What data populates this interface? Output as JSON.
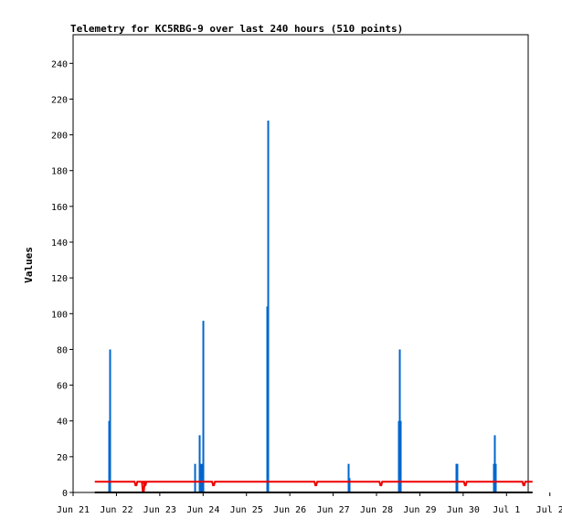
{
  "chart_data": {
    "type": "bar",
    "title": "Telemetry for KC5RBG-9 over last 240 hours (510 points)",
    "ylabel": "Values",
    "xlabel": "",
    "ylim": [
      0,
      256
    ],
    "xlim_days": [
      21,
      31.5
    ],
    "y_ticks": [
      0,
      20,
      40,
      60,
      80,
      100,
      120,
      140,
      160,
      180,
      200,
      220,
      240
    ],
    "x_ticks": [
      {
        "day": 21,
        "label": "Jun 21"
      },
      {
        "day": 22,
        "label": "Jun 22"
      },
      {
        "day": 23,
        "label": "Jun 23"
      },
      {
        "day": 24,
        "label": "Jun 24"
      },
      {
        "day": 25,
        "label": "Jun 25"
      },
      {
        "day": 26,
        "label": "Jun 26"
      },
      {
        "day": 27,
        "label": "Jun 27"
      },
      {
        "day": 28,
        "label": "Jun 28"
      },
      {
        "day": 29,
        "label": "Jun 29"
      },
      {
        "day": 30,
        "label": "Jun 30"
      },
      {
        "day": 31,
        "label": "Jul 1"
      },
      {
        "day": 32,
        "label": "Jul 2"
      }
    ],
    "grid": false,
    "series": [
      {
        "color": "#0066cc",
        "style": "spikes",
        "points": [
          {
            "x": 21.82,
            "y": 40
          },
          {
            "x": 21.84,
            "y": 80
          },
          {
            "x": 23.8,
            "y": 16
          },
          {
            "x": 23.92,
            "y": 32
          },
          {
            "x": 23.96,
            "y": 16
          },
          {
            "x": 24.0,
            "y": 96
          },
          {
            "x": 25.48,
            "y": 104
          },
          {
            "x": 25.5,
            "y": 208
          },
          {
            "x": 27.34,
            "y": 16
          },
          {
            "x": 27.36,
            "y": 8
          },
          {
            "x": 28.5,
            "y": 40
          },
          {
            "x": 28.52,
            "y": 80
          },
          {
            "x": 28.54,
            "y": 40
          },
          {
            "x": 29.84,
            "y": 16
          },
          {
            "x": 29.86,
            "y": 16
          },
          {
            "x": 30.7,
            "y": 16
          },
          {
            "x": 30.72,
            "y": 32
          },
          {
            "x": 30.74,
            "y": 16
          }
        ]
      },
      {
        "color": "#ee0000",
        "style": "line",
        "baseline": 6,
        "x_start": 21.5,
        "x_end": 31.6,
        "dips": [
          {
            "x": 22.45,
            "y": 4
          },
          {
            "x": 22.62,
            "y": 0
          },
          {
            "x": 22.66,
            "y": 4
          },
          {
            "x": 24.24,
            "y": 4
          },
          {
            "x": 26.6,
            "y": 4
          },
          {
            "x": 28.1,
            "y": 4
          },
          {
            "x": 30.05,
            "y": 4
          },
          {
            "x": 31.4,
            "y": 4
          }
        ]
      },
      {
        "color": "#000000",
        "style": "line",
        "baseline": 0,
        "x_start": 21.5,
        "x_end": 31.6,
        "dips": []
      }
    ]
  }
}
